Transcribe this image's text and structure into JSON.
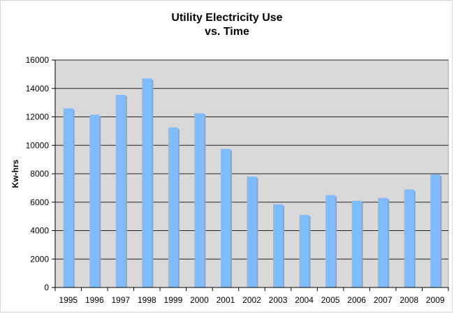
{
  "chart_data": {
    "type": "bar",
    "title_lines": [
      "Utility Electricity Use",
      "vs. Time"
    ],
    "xlabel": "",
    "ylabel": "Kw-hrs",
    "ylim": [
      0,
      16000
    ],
    "yticks": [
      0,
      2000,
      4000,
      6000,
      8000,
      10000,
      12000,
      14000,
      16000
    ],
    "grid": true,
    "legend": "none",
    "categories": [
      "1995",
      "1996",
      "1997",
      "1998",
      "1999",
      "2000",
      "2001",
      "2002",
      "2003",
      "2004",
      "2005",
      "2006",
      "2007",
      "2008",
      "2009"
    ],
    "values": [
      12600,
      12150,
      13550,
      14700,
      11250,
      12250,
      9750,
      7800,
      5850,
      5100,
      6500,
      6100,
      6300,
      6900,
      7950
    ],
    "colors": {
      "bar": "#7fbcff",
      "bar_shadow": "#9aa2b0",
      "plot_background": "#d9d9d9",
      "gridline": "#222222",
      "axis": "#000000"
    }
  }
}
